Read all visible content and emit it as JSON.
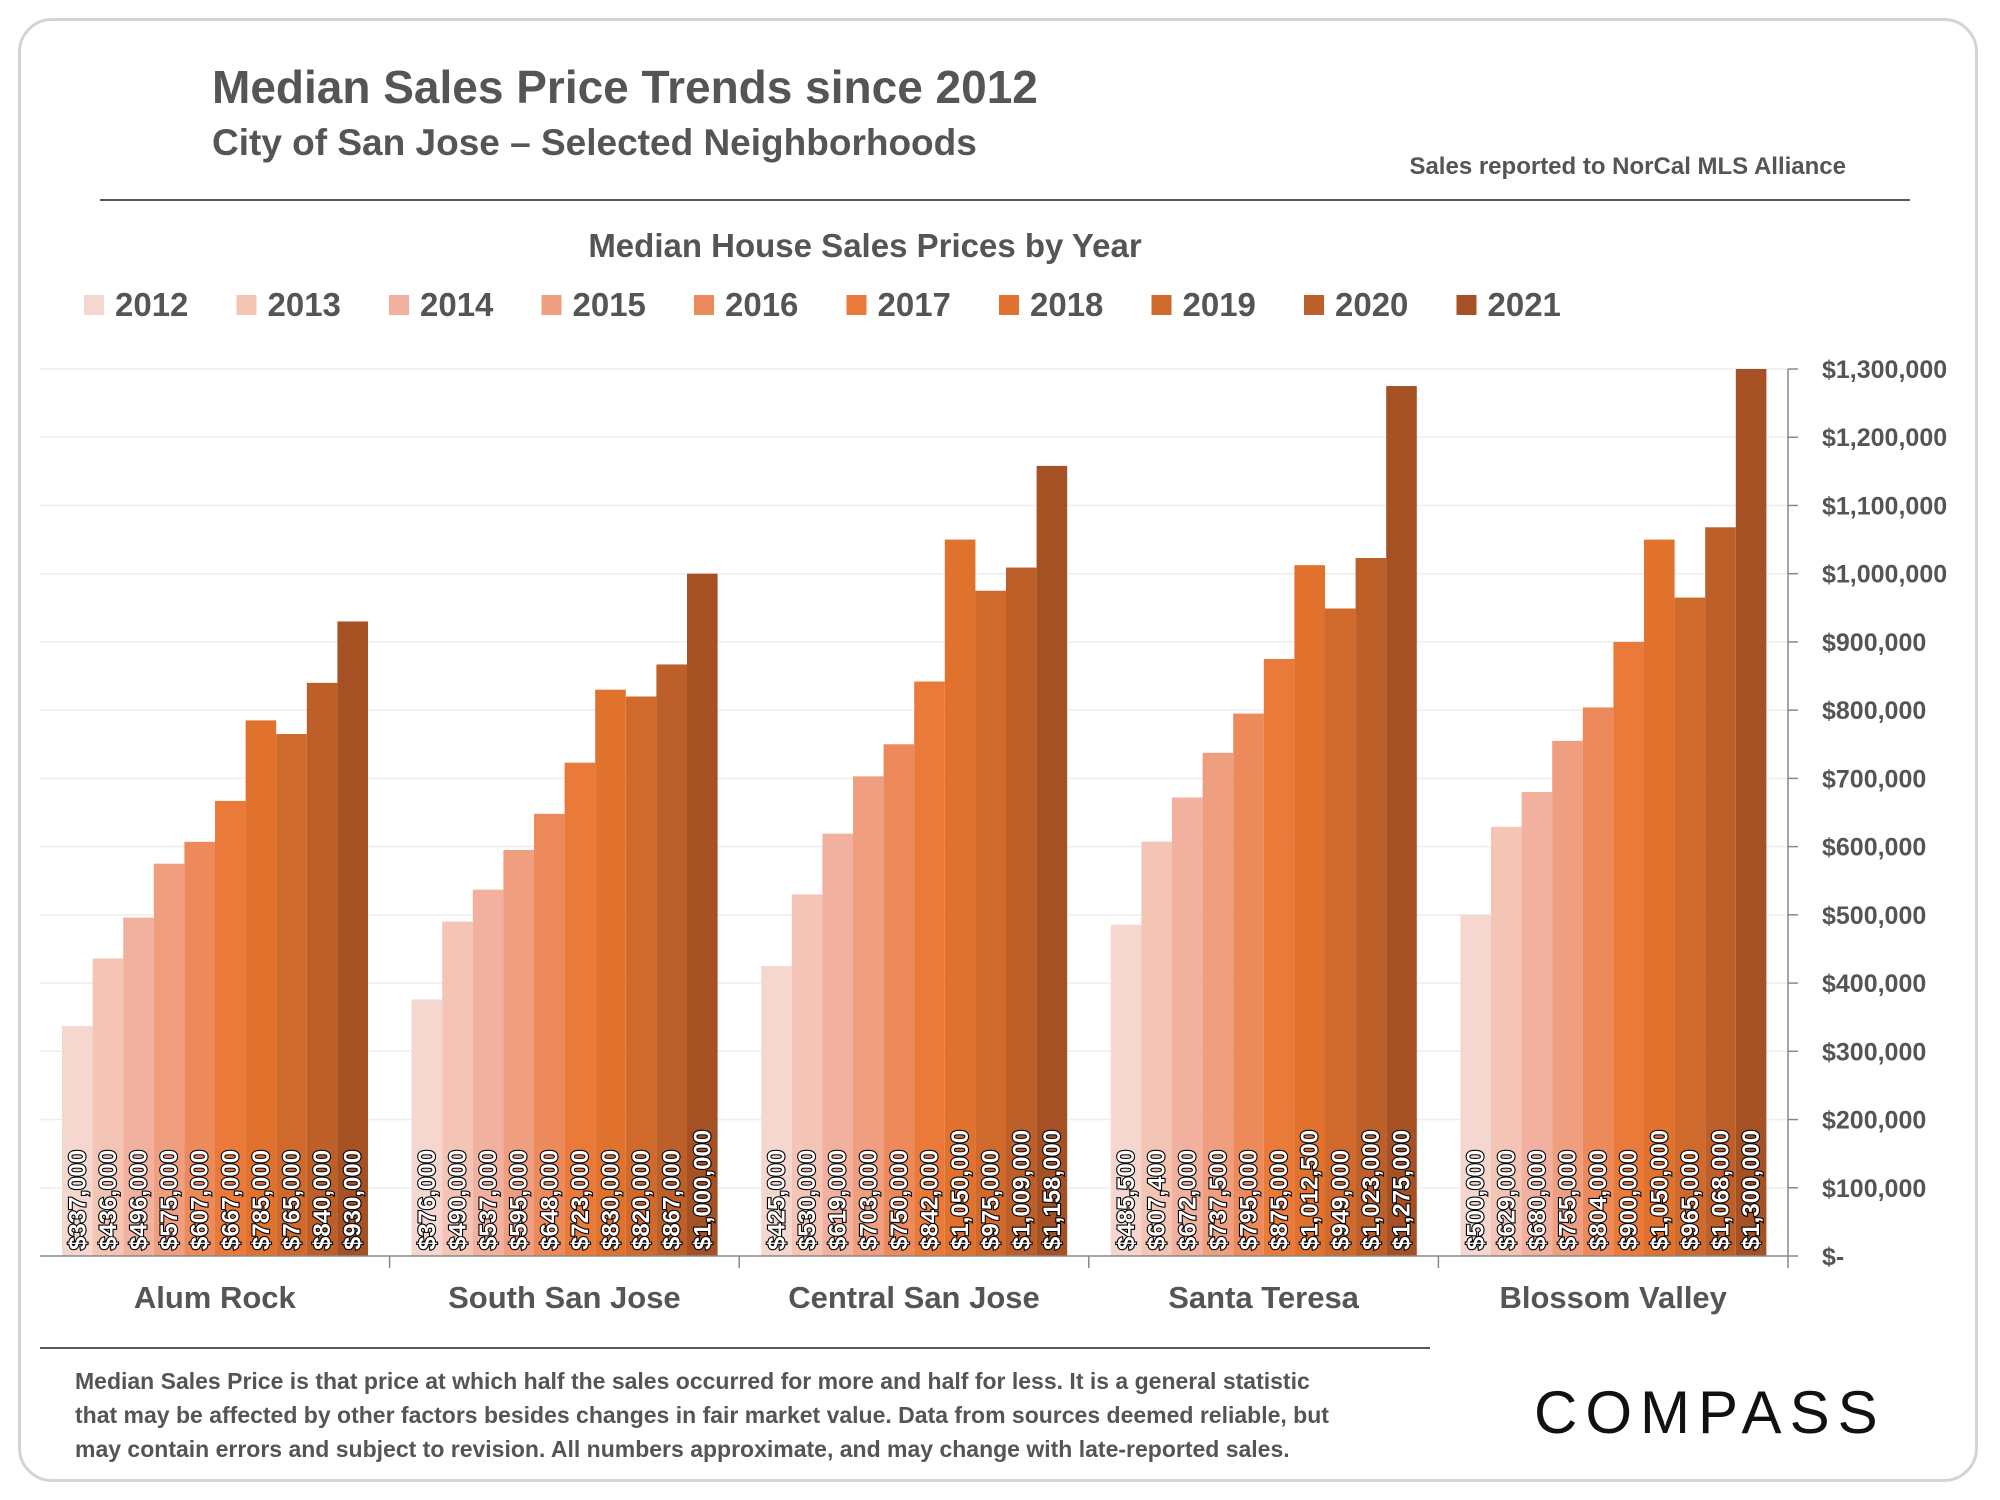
{
  "header": {
    "title": "Median Sales Price Trends since 2012",
    "subtitle": "City of San Jose – Selected Neighborhoods",
    "source": "Sales reported to NorCal MLS Alliance"
  },
  "footnote": {
    "line1": "Median Sales Price is that price at which half the sales occurred for more and half for less. It is a general statistic",
    "line2": "that may be affected by other factors besides changes in fair market value. Data from sources deemed reliable, but",
    "line3": "may contain errors and subject to revision.  All numbers approximate, and may change with late-reported sales."
  },
  "brand": {
    "logo_text": "COMPASS"
  },
  "chart_data": {
    "type": "bar",
    "title": "Median House Sales Prices by Year",
    "categories": [
      "Alum Rock",
      "South San Jose",
      "Central San Jose",
      "Santa Teresa",
      "Blossom Valley"
    ],
    "series": [
      {
        "name": "2012",
        "color": "#F6D7D0",
        "values": [
          337000,
          376000,
          425000,
          485500,
          500000
        ],
        "labels": [
          "$337,000",
          "$376,000",
          "$425,000",
          "$485,500",
          "$500,000"
        ]
      },
      {
        "name": "2013",
        "color": "#F4C4B5",
        "values": [
          436000,
          490000,
          530000,
          607400,
          629000
        ],
        "labels": [
          "$436,000",
          "$490,000",
          "$530,000",
          "$607,400",
          "$629,000"
        ]
      },
      {
        "name": "2014",
        "color": "#F2B19E",
        "values": [
          496000,
          537000,
          619000,
          672000,
          680000
        ],
        "labels": [
          "$496,000",
          "$537,000",
          "$619,000",
          "$672,000",
          "$680,000"
        ]
      },
      {
        "name": "2015",
        "color": "#EF9F80",
        "values": [
          575000,
          595000,
          703000,
          737500,
          755000
        ],
        "labels": [
          "$575,000",
          "$595,000",
          "$703,000",
          "$737,500",
          "$755,000"
        ]
      },
      {
        "name": "2016",
        "color": "#EC8A5B",
        "values": [
          607000,
          648000,
          750000,
          795000,
          804000
        ],
        "labels": [
          "$607,000",
          "$648,000",
          "$750,000",
          "$795,000",
          "$804,000"
        ]
      },
      {
        "name": "2017",
        "color": "#E97A3A",
        "values": [
          667000,
          723000,
          842000,
          875000,
          900000
        ],
        "labels": [
          "$667,000",
          "$723,000",
          "$842,000",
          "$875,000",
          "$900,000"
        ]
      },
      {
        "name": "2018",
        "color": "#E0722D",
        "values": [
          785000,
          830000,
          1050000,
          1012500,
          1050000
        ],
        "labels": [
          "$785,000",
          "$830,000",
          "$1,050,000",
          "$1,012,500",
          "$1,050,000"
        ]
      },
      {
        "name": "2019",
        "color": "#CF6A2C",
        "values": [
          765000,
          820000,
          975000,
          949000,
          965000
        ],
        "labels": [
          "$765,000",
          "$820,000",
          "$975,000",
          "$949,000",
          "$965,000"
        ]
      },
      {
        "name": "2020",
        "color": "#BC5F28",
        "values": [
          840000,
          867000,
          1009000,
          1023000,
          1068000
        ],
        "labels": [
          "$840,000",
          "$867,000",
          "$1,009,000",
          "$1,023,000",
          "$1,068,000"
        ]
      },
      {
        "name": "2021",
        "color": "#A65124",
        "values": [
          930000,
          1000000,
          1158000,
          1275000,
          1300000
        ],
        "labels": [
          "$930,000",
          "$1,000,000",
          "$1,158,000",
          "$1,275,000",
          "$1,300,000"
        ]
      }
    ],
    "ylim": [
      0,
      1300000
    ],
    "yticks": [
      0,
      100000,
      200000,
      300000,
      400000,
      500000,
      600000,
      700000,
      800000,
      900000,
      1000000,
      1100000,
      1200000,
      1300000
    ],
    "ytick_labels": [
      "$-",
      "$100,000",
      "$200,000",
      "$300,000",
      "$400,000",
      "$500,000",
      "$600,000",
      "$700,000",
      "$800,000",
      "$900,000",
      "$1,000,000",
      "$1,100,000",
      "$1,200,000",
      "$1,300,000"
    ],
    "yaxis_position": "right",
    "legend_position": "top-left",
    "grid": true
  }
}
